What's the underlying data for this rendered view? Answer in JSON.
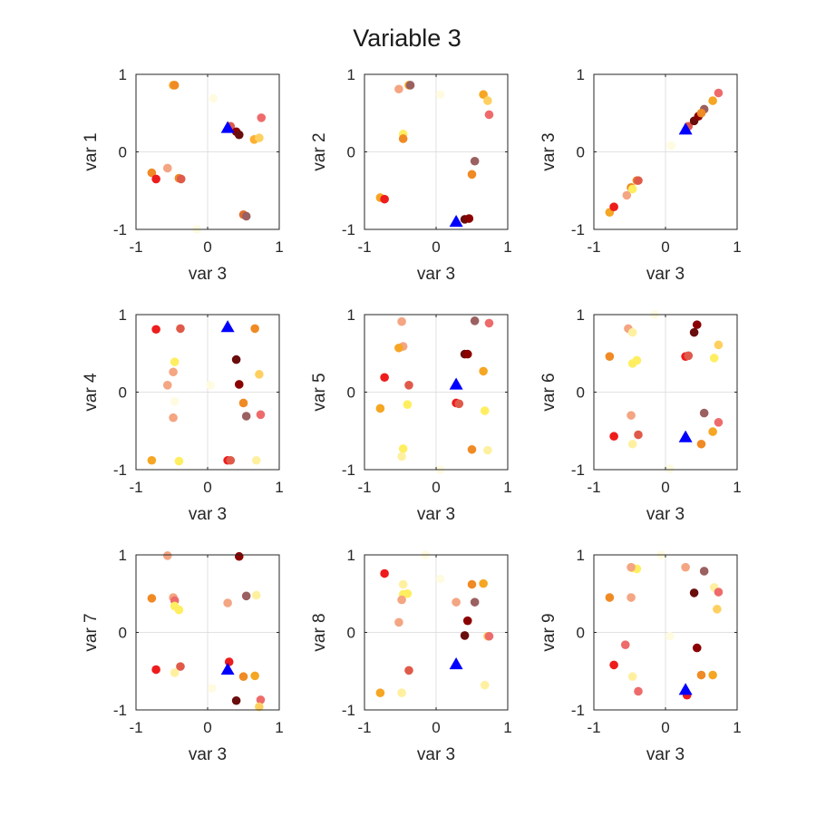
{
  "figure": {
    "title": "Variable 3"
  },
  "colors": {
    "highlight": "#0000ff",
    "frame": "#262626",
    "zero_line": "#d9d9d9"
  },
  "chart_data": [
    {
      "type": "scatter",
      "xlabel": "var 3",
      "ylabel": "var 1",
      "xlim": [
        -1,
        1
      ],
      "ylim": [
        -1,
        1
      ],
      "xticks": [
        "-1",
        "0",
        "1"
      ],
      "yticks": [
        "-1",
        "0",
        "1"
      ],
      "grid": false,
      "zero_lines": true,
      "highlight": {
        "x": 0.28,
        "y": 0.31,
        "marker": "triangle"
      },
      "points": [
        {
          "x": -0.48,
          "y": 0.86,
          "c": "#f5a623"
        },
        {
          "x": -0.46,
          "y": 0.86,
          "c": "#f08a24"
        },
        {
          "x": 0.08,
          "y": 0.69,
          "c": "#fffbe0"
        },
        {
          "x": 0.32,
          "y": 0.33,
          "c": "#e05a4a"
        },
        {
          "x": 0.4,
          "y": 0.26,
          "c": "#8b0000"
        },
        {
          "x": 0.44,
          "y": 0.22,
          "c": "#6a0d0d"
        },
        {
          "x": 0.75,
          "y": 0.44,
          "c": "#ee6b6b"
        },
        {
          "x": 0.65,
          "y": 0.16,
          "c": "#ffb030"
        },
        {
          "x": 0.72,
          "y": 0.18,
          "c": "#ffd060"
        },
        {
          "x": -0.78,
          "y": -0.27,
          "c": "#f08a24"
        },
        {
          "x": -0.72,
          "y": -0.35,
          "c": "#ee1c1c"
        },
        {
          "x": -0.56,
          "y": -0.21,
          "c": "#f4a582"
        },
        {
          "x": -0.4,
          "y": -0.34,
          "c": "#f08a24"
        },
        {
          "x": -0.37,
          "y": -0.35,
          "c": "#e05a4a"
        },
        {
          "x": 0.5,
          "y": -0.81,
          "c": "#e06d2d"
        },
        {
          "x": 0.54,
          "y": -0.83,
          "c": "#9b6060"
        },
        {
          "x": -0.15,
          "y": -1.0,
          "c": "#fffbe0"
        }
      ]
    },
    {
      "type": "scatter",
      "xlabel": "var 3",
      "ylabel": "var 2",
      "xlim": [
        -1,
        1
      ],
      "ylim": [
        -1,
        1
      ],
      "xticks": [
        "-1",
        "0",
        "1"
      ],
      "yticks": [
        "-1",
        "0",
        "1"
      ],
      "grid": false,
      "zero_lines": true,
      "highlight": {
        "x": 0.28,
        "y": -0.9,
        "marker": "triangle"
      },
      "points": [
        {
          "x": -0.52,
          "y": 0.81,
          "c": "#f4a582"
        },
        {
          "x": -0.38,
          "y": 0.86,
          "c": "#f5a623"
        },
        {
          "x": -0.36,
          "y": 0.86,
          "c": "#9b6060"
        },
        {
          "x": 0.06,
          "y": 0.74,
          "c": "#fffbe0"
        },
        {
          "x": 0.66,
          "y": 0.74,
          "c": "#f5a623"
        },
        {
          "x": 0.72,
          "y": 0.66,
          "c": "#ffd060"
        },
        {
          "x": 0.74,
          "y": 0.48,
          "c": "#ee6b6b"
        },
        {
          "x": -0.46,
          "y": 0.23,
          "c": "#ffee60"
        },
        {
          "x": -0.46,
          "y": 0.17,
          "c": "#f08a24"
        },
        {
          "x": 0.54,
          "y": -0.12,
          "c": "#9b6060"
        },
        {
          "x": 0.5,
          "y": -0.29,
          "c": "#f08a24"
        },
        {
          "x": -0.78,
          "y": -0.59,
          "c": "#f5a623"
        },
        {
          "x": -0.72,
          "y": -0.61,
          "c": "#ee1c1c"
        },
        {
          "x": 0.4,
          "y": -0.87,
          "c": "#6a0d0d"
        },
        {
          "x": 0.46,
          "y": -0.86,
          "c": "#8b0000"
        }
      ]
    },
    {
      "type": "scatter",
      "xlabel": "var 3",
      "ylabel": "var 3",
      "xlim": [
        -1,
        1
      ],
      "ylim": [
        -1,
        1
      ],
      "xticks": [
        "-1",
        "0",
        "1"
      ],
      "yticks": [
        "-1",
        "0",
        "1"
      ],
      "grid": false,
      "zero_lines": true,
      "highlight": {
        "x": 0.28,
        "y": 0.29,
        "marker": "triangle"
      },
      "points": [
        {
          "x": -0.78,
          "y": -0.78,
          "c": "#f5a623"
        },
        {
          "x": -0.72,
          "y": -0.71,
          "c": "#ee1c1c"
        },
        {
          "x": -0.54,
          "y": -0.56,
          "c": "#f4a582"
        },
        {
          "x": -0.48,
          "y": -0.46,
          "c": "#f08a24"
        },
        {
          "x": -0.46,
          "y": -0.48,
          "c": "#ffee60"
        },
        {
          "x": -0.4,
          "y": -0.37,
          "c": "#f08a24"
        },
        {
          "x": -0.38,
          "y": -0.37,
          "c": "#e05a4a"
        },
        {
          "x": 0.08,
          "y": 0.08,
          "c": "#fffbe0"
        },
        {
          "x": 0.32,
          "y": 0.33,
          "c": "#e05a4a"
        },
        {
          "x": 0.4,
          "y": 0.4,
          "c": "#6a0d0d"
        },
        {
          "x": 0.46,
          "y": 0.46,
          "c": "#8b0000"
        },
        {
          "x": 0.54,
          "y": 0.55,
          "c": "#9b6060"
        },
        {
          "x": 0.5,
          "y": 0.5,
          "c": "#f08a24"
        },
        {
          "x": 0.66,
          "y": 0.66,
          "c": "#f5a623"
        },
        {
          "x": 0.74,
          "y": 0.76,
          "c": "#ee6b6b"
        }
      ]
    },
    {
      "type": "scatter",
      "xlabel": "var 3",
      "ylabel": "var 4",
      "xlim": [
        -1,
        1
      ],
      "ylim": [
        -1,
        1
      ],
      "xticks": [
        "-1",
        "0",
        "1"
      ],
      "yticks": [
        "-1",
        "0",
        "1"
      ],
      "grid": false,
      "zero_lines": true,
      "highlight": {
        "x": 0.28,
        "y": 0.84,
        "marker": "triangle"
      },
      "points": [
        {
          "x": -0.72,
          "y": 0.81,
          "c": "#ee1c1c"
        },
        {
          "x": -0.38,
          "y": 0.82,
          "c": "#e05a4a"
        },
        {
          "x": 0.66,
          "y": 0.82,
          "c": "#f08a24"
        },
        {
          "x": 0.4,
          "y": 0.42,
          "c": "#6a0d0d"
        },
        {
          "x": -0.46,
          "y": 0.39,
          "c": "#ffee60"
        },
        {
          "x": -0.48,
          "y": 0.26,
          "c": "#f4a582"
        },
        {
          "x": 0.72,
          "y": 0.23,
          "c": "#ffd060"
        },
        {
          "x": 0.44,
          "y": 0.1,
          "c": "#8b0000"
        },
        {
          "x": -0.56,
          "y": 0.09,
          "c": "#f4a582"
        },
        {
          "x": 0.04,
          "y": 0.09,
          "c": "#fffbe0"
        },
        {
          "x": -0.46,
          "y": -0.12,
          "c": "#fffbe0"
        },
        {
          "x": 0.5,
          "y": -0.14,
          "c": "#f08a24"
        },
        {
          "x": 0.54,
          "y": -0.31,
          "c": "#9b6060"
        },
        {
          "x": 0.74,
          "y": -0.29,
          "c": "#ee6b6b"
        },
        {
          "x": -0.48,
          "y": -0.33,
          "c": "#f4a582"
        },
        {
          "x": -0.78,
          "y": -0.88,
          "c": "#f5a623"
        },
        {
          "x": -0.4,
          "y": -0.89,
          "c": "#ffee60"
        },
        {
          "x": 0.28,
          "y": -0.88,
          "c": "#ee1c1c"
        },
        {
          "x": 0.32,
          "y": -0.88,
          "c": "#e05a4a"
        },
        {
          "x": 0.68,
          "y": -0.88,
          "c": "#fff0a0"
        }
      ]
    },
    {
      "type": "scatter",
      "xlabel": "var 3",
      "ylabel": "var 5",
      "xlim": [
        -1,
        1
      ],
      "ylim": [
        -1,
        1
      ],
      "xticks": [
        "-1",
        "0",
        "1"
      ],
      "yticks": [
        "-1",
        "0",
        "1"
      ],
      "grid": false,
      "zero_lines": true,
      "highlight": {
        "x": 0.28,
        "y": 0.1,
        "marker": "triangle"
      },
      "points": [
        {
          "x": -0.48,
          "y": 0.91,
          "c": "#f4a582"
        },
        {
          "x": 0.54,
          "y": 0.92,
          "c": "#9b6060"
        },
        {
          "x": 0.74,
          "y": 0.89,
          "c": "#ee6b6b"
        },
        {
          "x": -0.46,
          "y": 0.59,
          "c": "#f4a582"
        },
        {
          "x": -0.52,
          "y": 0.57,
          "c": "#f5a623"
        },
        {
          "x": 0.4,
          "y": 0.49,
          "c": "#6a0d0d"
        },
        {
          "x": 0.44,
          "y": 0.49,
          "c": "#8b0000"
        },
        {
          "x": 0.66,
          "y": 0.27,
          "c": "#f5a623"
        },
        {
          "x": -0.72,
          "y": 0.19,
          "c": "#ee1c1c"
        },
        {
          "x": -0.38,
          "y": 0.09,
          "c": "#e05a4a"
        },
        {
          "x": -0.4,
          "y": -0.16,
          "c": "#ffee60"
        },
        {
          "x": 0.28,
          "y": -0.14,
          "c": "#ee1c1c"
        },
        {
          "x": 0.32,
          "y": -0.15,
          "c": "#e05a4a"
        },
        {
          "x": -0.78,
          "y": -0.21,
          "c": "#f5a623"
        },
        {
          "x": 0.68,
          "y": -0.24,
          "c": "#ffee60"
        },
        {
          "x": -0.46,
          "y": -0.73,
          "c": "#ffee60"
        },
        {
          "x": -0.48,
          "y": -0.83,
          "c": "#fff0a0"
        },
        {
          "x": 0.5,
          "y": -0.74,
          "c": "#f08a24"
        },
        {
          "x": 0.72,
          "y": -0.75,
          "c": "#fff0a0"
        },
        {
          "x": 0.06,
          "y": -1.0,
          "c": "#fffbe0"
        }
      ]
    },
    {
      "type": "scatter",
      "xlabel": "var 3",
      "ylabel": "var 6",
      "xlim": [
        -1,
        1
      ],
      "ylim": [
        -1,
        1
      ],
      "xticks": [
        "-1",
        "0",
        "1"
      ],
      "yticks": [
        "-1",
        "0",
        "1"
      ],
      "grid": false,
      "zero_lines": true,
      "highlight": {
        "x": 0.28,
        "y": -0.58,
        "marker": "triangle"
      },
      "points": [
        {
          "x": -0.52,
          "y": 0.82,
          "c": "#f4a582"
        },
        {
          "x": -0.46,
          "y": 0.77,
          "c": "#fff0a0"
        },
        {
          "x": 0.44,
          "y": 0.87,
          "c": "#8b0000"
        },
        {
          "x": 0.4,
          "y": 0.77,
          "c": "#6a0d0d"
        },
        {
          "x": -0.15,
          "y": 1.0,
          "c": "#fffbe0"
        },
        {
          "x": 0.74,
          "y": 0.61,
          "c": "#ffd060"
        },
        {
          "x": -0.78,
          "y": 0.46,
          "c": "#f08a24"
        },
        {
          "x": 0.28,
          "y": 0.46,
          "c": "#ee1c1c"
        },
        {
          "x": 0.32,
          "y": 0.47,
          "c": "#e05a4a"
        },
        {
          "x": 0.68,
          "y": 0.44,
          "c": "#ffee60"
        },
        {
          "x": -0.4,
          "y": 0.41,
          "c": "#ffee60"
        },
        {
          "x": -0.46,
          "y": 0.37,
          "c": "#ffee60"
        },
        {
          "x": -0.48,
          "y": -0.3,
          "c": "#f4a582"
        },
        {
          "x": 0.54,
          "y": -0.27,
          "c": "#9b6060"
        },
        {
          "x": 0.74,
          "y": -0.39,
          "c": "#ee6b6b"
        },
        {
          "x": -0.72,
          "y": -0.57,
          "c": "#ee1c1c"
        },
        {
          "x": -0.38,
          "y": -0.55,
          "c": "#e05a4a"
        },
        {
          "x": 0.66,
          "y": -0.51,
          "c": "#f5a623"
        },
        {
          "x": 0.5,
          "y": -0.67,
          "c": "#f08a24"
        },
        {
          "x": -0.46,
          "y": -0.67,
          "c": "#fff0a0"
        },
        {
          "x": 0.06,
          "y": -0.99,
          "c": "#fffbe0"
        }
      ]
    },
    {
      "type": "scatter",
      "xlabel": "var 3",
      "ylabel": "var 7",
      "xlim": [
        -1,
        1
      ],
      "ylim": [
        -1,
        1
      ],
      "xticks": [
        "-1",
        "0",
        "1"
      ],
      "yticks": [
        "-1",
        "0",
        "1"
      ],
      "grid": false,
      "zero_lines": true,
      "highlight": {
        "x": 0.28,
        "y": -0.48,
        "marker": "triangle"
      },
      "points": [
        {
          "x": -0.56,
          "y": 0.99,
          "c": "#f4a582"
        },
        {
          "x": 0.44,
          "y": 0.98,
          "c": "#8b0000"
        },
        {
          "x": -0.78,
          "y": 0.44,
          "c": "#f08a24"
        },
        {
          "x": -0.48,
          "y": 0.45,
          "c": "#f4a582"
        },
        {
          "x": -0.46,
          "y": 0.41,
          "c": "#ee6b6b"
        },
        {
          "x": -0.46,
          "y": 0.34,
          "c": "#ffee60"
        },
        {
          "x": -0.4,
          "y": 0.29,
          "c": "#ffee60"
        },
        {
          "x": 0.28,
          "y": 0.38,
          "c": "#f4a582"
        },
        {
          "x": 0.54,
          "y": 0.47,
          "c": "#9b6060"
        },
        {
          "x": 0.68,
          "y": 0.48,
          "c": "#fff0a0"
        },
        {
          "x": -0.72,
          "y": -0.48,
          "c": "#ee1c1c"
        },
        {
          "x": -0.38,
          "y": -0.44,
          "c": "#e05a4a"
        },
        {
          "x": -0.46,
          "y": -0.52,
          "c": "#fff0a0"
        },
        {
          "x": 0.3,
          "y": -0.38,
          "c": "#ee1c1c"
        },
        {
          "x": 0.5,
          "y": -0.57,
          "c": "#f08a24"
        },
        {
          "x": 0.66,
          "y": -0.56,
          "c": "#f5a623"
        },
        {
          "x": 0.06,
          "y": -0.72,
          "c": "#fffbe0"
        },
        {
          "x": 0.4,
          "y": -0.88,
          "c": "#6a0d0d"
        },
        {
          "x": 0.74,
          "y": -0.87,
          "c": "#ee6b6b"
        },
        {
          "x": 0.72,
          "y": -0.96,
          "c": "#ffd060"
        }
      ]
    },
    {
      "type": "scatter",
      "xlabel": "var 3",
      "ylabel": "var 8",
      "xlim": [
        -1,
        1
      ],
      "ylim": [
        -1,
        1
      ],
      "xticks": [
        "-1",
        "0",
        "1"
      ],
      "yticks": [
        "-1",
        "0",
        "1"
      ],
      "grid": false,
      "zero_lines": true,
      "highlight": {
        "x": 0.28,
        "y": -0.41,
        "marker": "triangle"
      },
      "points": [
        {
          "x": -0.72,
          "y": 0.76,
          "c": "#ee1c1c"
        },
        {
          "x": -0.15,
          "y": 1.0,
          "c": "#fffbe0"
        },
        {
          "x": 0.06,
          "y": 0.69,
          "c": "#fffbe0"
        },
        {
          "x": -0.46,
          "y": 0.62,
          "c": "#fff0a0"
        },
        {
          "x": 0.5,
          "y": 0.62,
          "c": "#f08a24"
        },
        {
          "x": 0.66,
          "y": 0.63,
          "c": "#f5a623"
        },
        {
          "x": -0.46,
          "y": 0.49,
          "c": "#ffee60"
        },
        {
          "x": -0.4,
          "y": 0.5,
          "c": "#ffee60"
        },
        {
          "x": -0.48,
          "y": 0.42,
          "c": "#f4a582"
        },
        {
          "x": 0.28,
          "y": 0.39,
          "c": "#f4a582"
        },
        {
          "x": 0.54,
          "y": 0.39,
          "c": "#9b6060"
        },
        {
          "x": 0.44,
          "y": 0.15,
          "c": "#8b0000"
        },
        {
          "x": -0.52,
          "y": 0.13,
          "c": "#f4a582"
        },
        {
          "x": 0.4,
          "y": -0.04,
          "c": "#6a0d0d"
        },
        {
          "x": 0.72,
          "y": -0.05,
          "c": "#ffd060"
        },
        {
          "x": 0.74,
          "y": -0.05,
          "c": "#ee6b6b"
        },
        {
          "x": -0.38,
          "y": -0.49,
          "c": "#e05a4a"
        },
        {
          "x": 0.68,
          "y": -0.68,
          "c": "#fff0a0"
        },
        {
          "x": -0.78,
          "y": -0.78,
          "c": "#f5a623"
        },
        {
          "x": -0.48,
          "y": -0.78,
          "c": "#fff0a0"
        }
      ]
    },
    {
      "type": "scatter",
      "xlabel": "var 3",
      "ylabel": "var 9",
      "xlim": [
        -1,
        1
      ],
      "ylim": [
        -1,
        1
      ],
      "xticks": [
        "-1",
        "0",
        "1"
      ],
      "yticks": [
        "-1",
        "0",
        "1"
      ],
      "grid": false,
      "zero_lines": true,
      "highlight": {
        "x": 0.28,
        "y": -0.74,
        "marker": "triangle"
      },
      "points": [
        {
          "x": -0.46,
          "y": 0.83,
          "c": "#ffee60"
        },
        {
          "x": -0.4,
          "y": 0.82,
          "c": "#ffee60"
        },
        {
          "x": -0.48,
          "y": 0.84,
          "c": "#f4a582"
        },
        {
          "x": 0.28,
          "y": 0.84,
          "c": "#f4a582"
        },
        {
          "x": 0.54,
          "y": 0.79,
          "c": "#9b6060"
        },
        {
          "x": -0.06,
          "y": 1.0,
          "c": "#fffbe0"
        },
        {
          "x": 0.68,
          "y": 0.58,
          "c": "#fff0a0"
        },
        {
          "x": 0.74,
          "y": 0.52,
          "c": "#ee6b6b"
        },
        {
          "x": 0.4,
          "y": 0.51,
          "c": "#6a0d0d"
        },
        {
          "x": -0.78,
          "y": 0.45,
          "c": "#f08a24"
        },
        {
          "x": -0.48,
          "y": 0.45,
          "c": "#f4a582"
        },
        {
          "x": 0.72,
          "y": 0.3,
          "c": "#ffd060"
        },
        {
          "x": 0.06,
          "y": -0.05,
          "c": "#fffbe0"
        },
        {
          "x": -0.56,
          "y": -0.16,
          "c": "#ee6b6b"
        },
        {
          "x": 0.44,
          "y": -0.2,
          "c": "#8b0000"
        },
        {
          "x": -0.72,
          "y": -0.42,
          "c": "#ee1c1c"
        },
        {
          "x": 0.5,
          "y": -0.55,
          "c": "#f08a24"
        },
        {
          "x": 0.66,
          "y": -0.55,
          "c": "#f5a623"
        },
        {
          "x": -0.46,
          "y": -0.57,
          "c": "#fff0a0"
        },
        {
          "x": -0.38,
          "y": -0.76,
          "c": "#ee6b6b"
        },
        {
          "x": 0.3,
          "y": -0.81,
          "c": "#ee1c1c"
        }
      ]
    }
  ]
}
